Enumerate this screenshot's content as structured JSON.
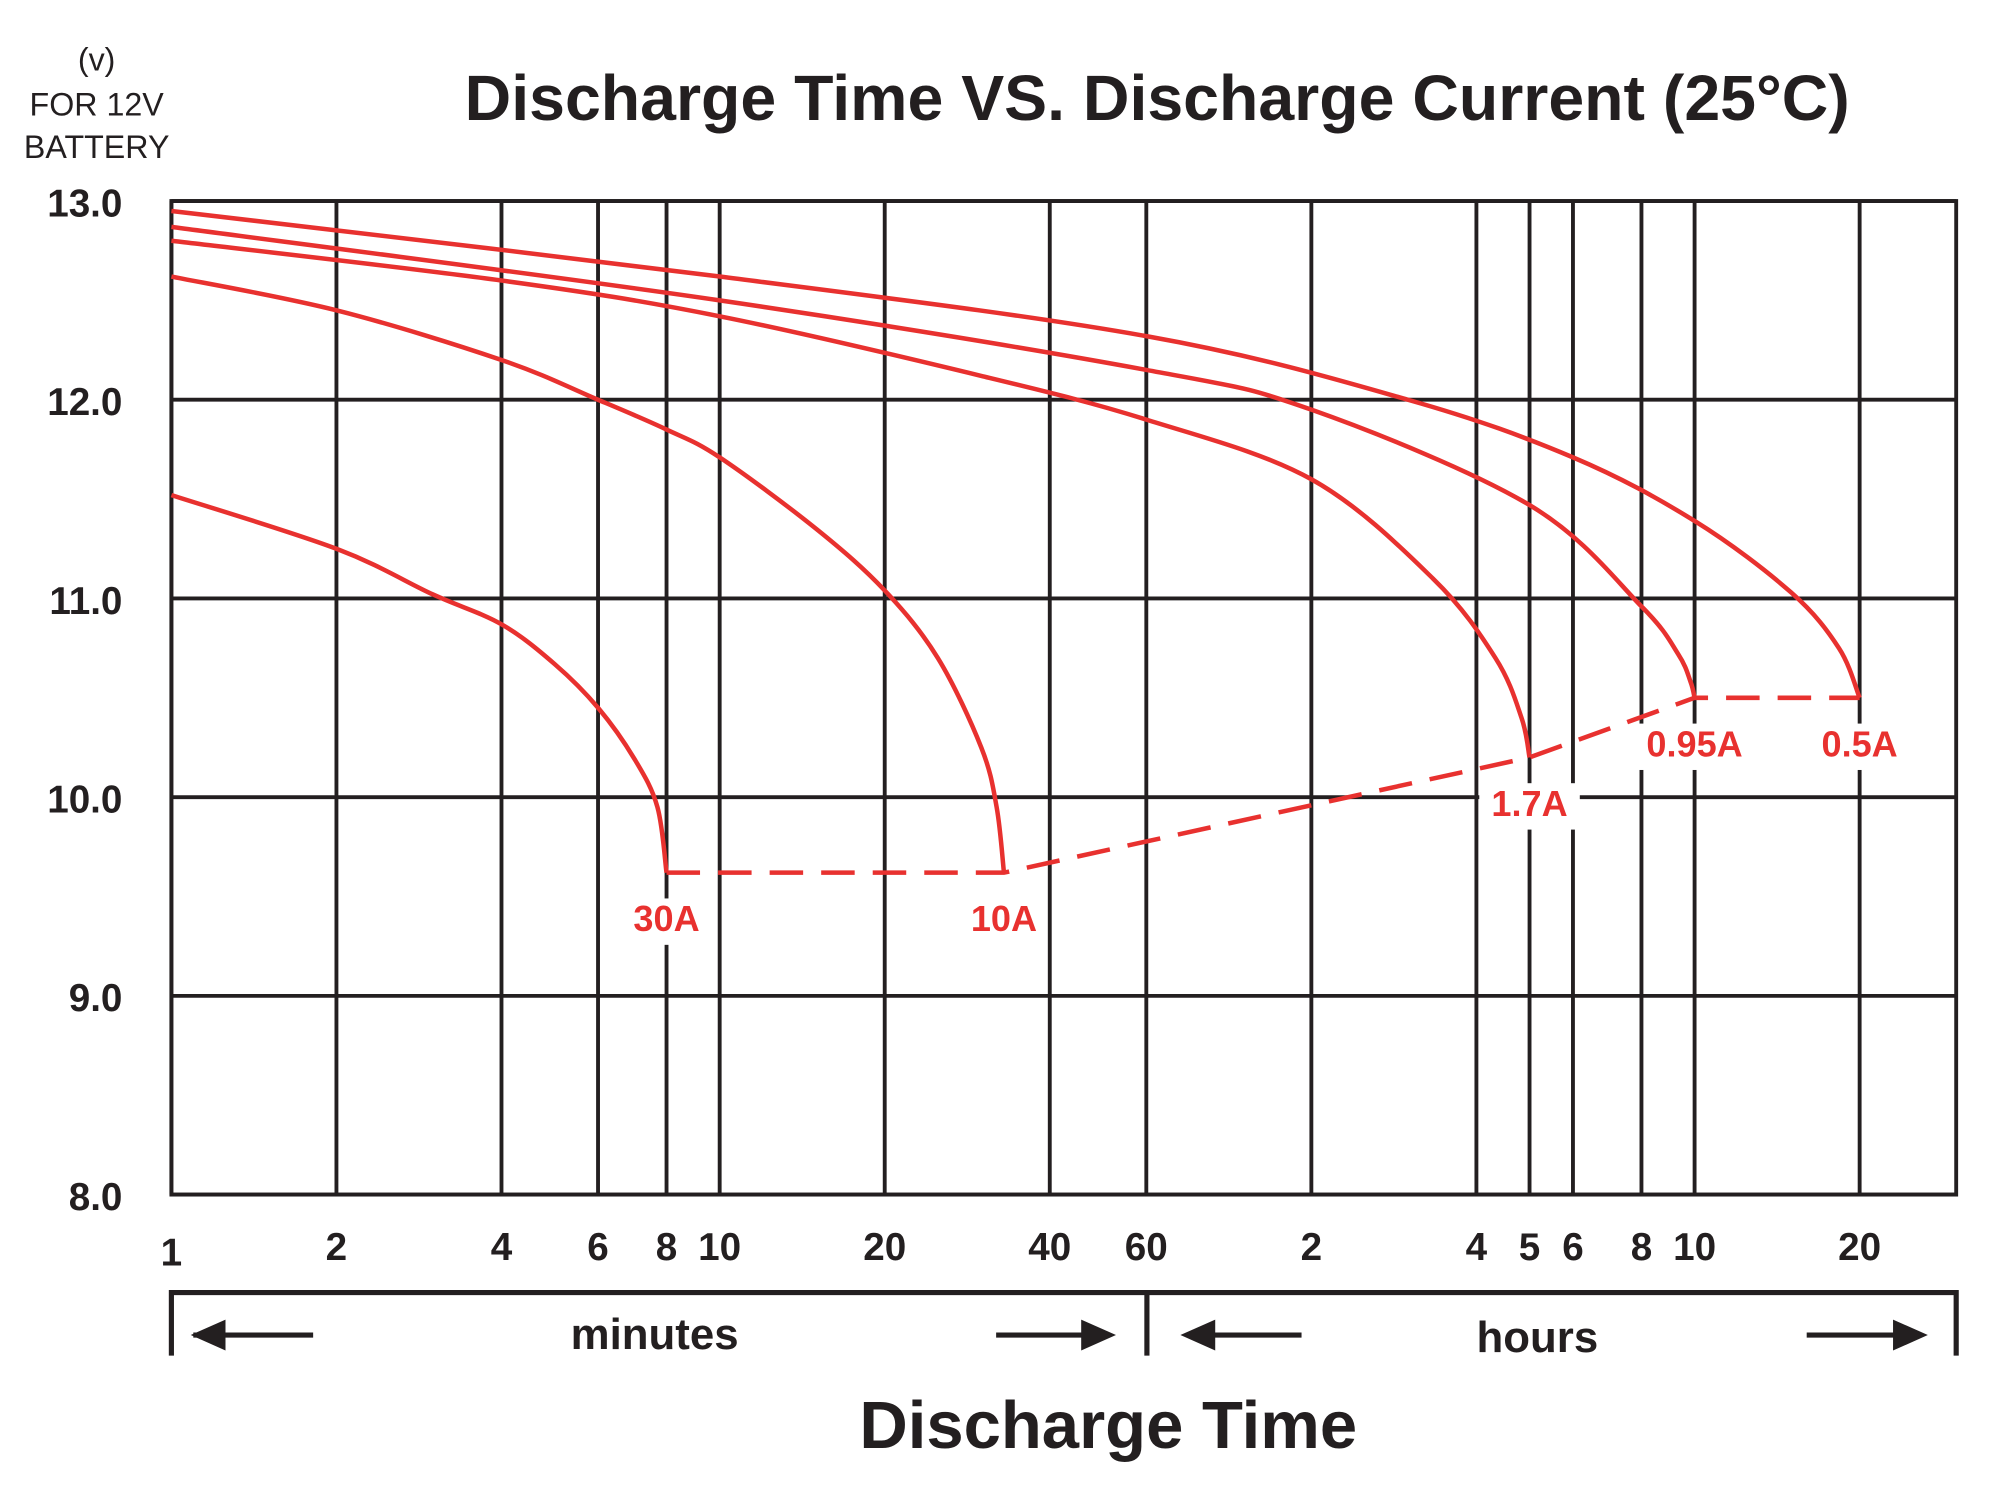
{
  "chart_data": {
    "type": "line",
    "title": "Discharge Time VS. Discharge Current (25°C)",
    "y_label": [
      "(v)",
      "FOR 12V",
      "BATTERY"
    ],
    "x_label": "Discharge Time",
    "x_groups": [
      "minutes",
      "hours"
    ],
    "log_x": true,
    "grid": true,
    "xlim": [
      1,
      1800
    ],
    "xticks": [
      1,
      2,
      4,
      6,
      8,
      10,
      20,
      40,
      60,
      {
        "value": 120,
        "label": "2"
      },
      {
        "value": 240,
        "label": "4"
      },
      {
        "value": 300,
        "label": "5"
      },
      {
        "value": 360,
        "label": "6"
      },
      {
        "value": 480,
        "label": "8"
      },
      {
        "value": 600,
        "label": "10"
      },
      {
        "value": 1200,
        "label": "20"
      }
    ],
    "ylim": [
      8,
      13
    ],
    "yticks": [
      {
        "value": 8,
        "label": "8.0"
      },
      {
        "value": 9,
        "label": "9.0"
      },
      {
        "value": 10,
        "label": "10.0"
      },
      {
        "value": 11,
        "label": "11.0"
      },
      {
        "value": 12,
        "label": "12.0"
      },
      {
        "value": 13,
        "label": "13.0"
      }
    ],
    "series": [
      {
        "name": "30A",
        "color": "#e8312f",
        "x": [
          1,
          2,
          3,
          4,
          5,
          6,
          7,
          7.7,
          8
        ],
        "values": [
          11.52,
          11.25,
          11.02,
          10.87,
          10.67,
          10.45,
          10.19,
          9.95,
          9.62
        ]
      },
      {
        "name": "10A",
        "color": "#e8312f",
        "x": [
          1,
          2,
          4,
          6,
          8,
          10,
          15,
          20,
          25,
          30,
          32,
          33
        ],
        "values": [
          12.62,
          12.45,
          12.2,
          12.0,
          11.85,
          11.71,
          11.35,
          11.04,
          10.7,
          10.25,
          9.95,
          9.62
        ]
      },
      {
        "name": "1.7A",
        "color": "#e8312f",
        "x": [
          1,
          4,
          10,
          30,
          60,
          120,
          200,
          260,
          290,
          300
        ],
        "values": [
          12.8,
          12.6,
          12.42,
          12.12,
          11.9,
          11.6,
          11.1,
          10.7,
          10.4,
          10.2
        ]
      },
      {
        "name": "0.95A",
        "color": "#e8312f",
        "x": [
          1,
          10,
          60,
          120,
          300,
          480,
          560,
          590,
          600
        ],
        "values": [
          12.87,
          12.5,
          12.15,
          11.95,
          11.47,
          10.96,
          10.72,
          10.58,
          10.5
        ]
      },
      {
        "name": "0.5A",
        "color": "#e8312f",
        "x": [
          1,
          10,
          60,
          180,
          360,
          600,
          900,
          1100,
          1200
        ],
        "values": [
          12.95,
          12.62,
          12.32,
          12.0,
          11.71,
          11.39,
          11.03,
          10.75,
          10.5
        ]
      }
    ],
    "cutoff": {
      "color": "#e8312f",
      "dashed": true,
      "x": [
        8,
        33,
        300,
        600,
        1200
      ],
      "values": [
        9.62,
        9.62,
        10.2,
        10.5,
        10.5
      ]
    }
  }
}
